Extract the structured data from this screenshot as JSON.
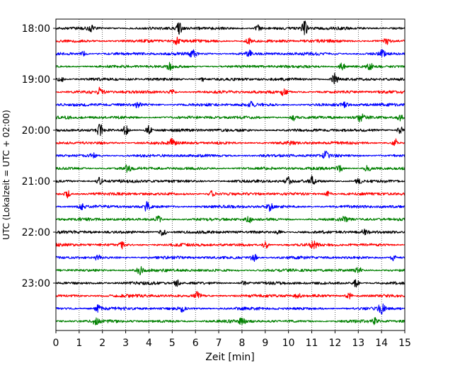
{
  "chart_data": {
    "type": "line",
    "title": "",
    "xlabel": "Zeit  [min]",
    "ylabel": "UTC (Lokalzeit = UTC + 02:00)",
    "xlim": [
      0,
      15
    ],
    "x_ticks": [
      "0",
      "1",
      "2",
      "3",
      "4",
      "5",
      "6",
      "7",
      "8",
      "9",
      "10",
      "11",
      "12",
      "13",
      "14",
      "15"
    ],
    "y_ticks": [
      {
        "label": "18:00",
        "row": 0
      },
      {
        "label": "19:00",
        "row": 4
      },
      {
        "label": "20:00",
        "row": 8
      },
      {
        "label": "21:00",
        "row": 12
      },
      {
        "label": "22:00",
        "row": 16
      },
      {
        "label": "23:00",
        "row": 20
      }
    ],
    "grid": "vertical dotted",
    "trace_interval_min": 15,
    "trace_colors": [
      "#000000",
      "#ff0000",
      "#0000ff",
      "#008000"
    ],
    "series": [
      {
        "start": "18:00",
        "events": [
          {
            "t": 5.3,
            "a": 7
          },
          {
            "t": 8.7,
            "a": 5
          },
          {
            "t": 10.7,
            "a": 9
          },
          {
            "t": 1.5,
            "a": 4
          }
        ]
      },
      {
        "start": "18:15",
        "events": [
          {
            "t": 5.2,
            "a": 5
          },
          {
            "t": 8.3,
            "a": 4
          },
          {
            "t": 14.2,
            "a": 4
          }
        ]
      },
      {
        "start": "18:30",
        "events": [
          {
            "t": 5.9,
            "a": 6
          },
          {
            "t": 8.3,
            "a": 4
          },
          {
            "t": 14.0,
            "a": 6
          },
          {
            "t": 1.2,
            "a": 3
          }
        ]
      },
      {
        "start": "18:45",
        "events": [
          {
            "t": 4.9,
            "a": 4
          },
          {
            "t": 12.3,
            "a": 5
          },
          {
            "t": 13.5,
            "a": 4
          }
        ]
      },
      {
        "start": "19:00",
        "events": [
          {
            "t": 12.0,
            "a": 8
          },
          {
            "t": 0.2,
            "a": 4
          },
          {
            "t": 6.3,
            "a": 3
          }
        ]
      },
      {
        "start": "19:15",
        "events": [
          {
            "t": 1.9,
            "a": 6
          },
          {
            "t": 9.8,
            "a": 4
          },
          {
            "t": 5.0,
            "a": 3
          }
        ]
      },
      {
        "start": "19:30",
        "events": [
          {
            "t": 8.4,
            "a": 4
          },
          {
            "t": 12.4,
            "a": 4
          },
          {
            "t": 3.5,
            "a": 3
          }
        ]
      },
      {
        "start": "19:45",
        "events": [
          {
            "t": 10.2,
            "a": 4
          },
          {
            "t": 13.1,
            "a": 6
          },
          {
            "t": 14.8,
            "a": 4
          }
        ]
      },
      {
        "start": "20:00",
        "events": [
          {
            "t": 1.9,
            "a": 8
          },
          {
            "t": 3.0,
            "a": 6
          },
          {
            "t": 4.0,
            "a": 6
          },
          {
            "t": 14.8,
            "a": 5
          }
        ]
      },
      {
        "start": "20:15",
        "events": [
          {
            "t": 5.0,
            "a": 7
          },
          {
            "t": 10.1,
            "a": 4
          },
          {
            "t": 14.6,
            "a": 5
          }
        ]
      },
      {
        "start": "20:30",
        "events": [
          {
            "t": 11.6,
            "a": 5
          },
          {
            "t": 1.6,
            "a": 3
          }
        ]
      },
      {
        "start": "20:45",
        "events": [
          {
            "t": 3.1,
            "a": 5
          },
          {
            "t": 12.2,
            "a": 4
          },
          {
            "t": 13.4,
            "a": 5
          }
        ]
      },
      {
        "start": "21:00",
        "events": [
          {
            "t": 1.9,
            "a": 5
          },
          {
            "t": 10.0,
            "a": 7
          },
          {
            "t": 11.0,
            "a": 6
          },
          {
            "t": 13.0,
            "a": 4
          }
        ]
      },
      {
        "start": "21:15",
        "events": [
          {
            "t": 0.5,
            "a": 5
          },
          {
            "t": 6.7,
            "a": 4
          },
          {
            "t": 11.7,
            "a": 4
          }
        ]
      },
      {
        "start": "21:30",
        "events": [
          {
            "t": 3.9,
            "a": 6
          },
          {
            "t": 9.2,
            "a": 5
          },
          {
            "t": 1.1,
            "a": 3
          }
        ]
      },
      {
        "start": "21:45",
        "events": [
          {
            "t": 4.4,
            "a": 4
          },
          {
            "t": 8.3,
            "a": 4
          },
          {
            "t": 12.4,
            "a": 4
          }
        ]
      },
      {
        "start": "22:00",
        "events": [
          {
            "t": 4.6,
            "a": 5
          },
          {
            "t": 13.3,
            "a": 5
          },
          {
            "t": 9.6,
            "a": 3
          }
        ]
      },
      {
        "start": "22:15",
        "events": [
          {
            "t": 2.8,
            "a": 5
          },
          {
            "t": 9.0,
            "a": 5
          },
          {
            "t": 11.1,
            "a": 5
          }
        ]
      },
      {
        "start": "22:30",
        "events": [
          {
            "t": 8.5,
            "a": 6
          },
          {
            "t": 14.5,
            "a": 4
          },
          {
            "t": 1.8,
            "a": 3
          }
        ]
      },
      {
        "start": "22:45",
        "events": [
          {
            "t": 3.6,
            "a": 5
          },
          {
            "t": 13.0,
            "a": 5
          }
        ]
      },
      {
        "start": "23:00",
        "events": [
          {
            "t": 5.2,
            "a": 4
          },
          {
            "t": 12.9,
            "a": 5
          },
          {
            "t": 8.1,
            "a": 3
          }
        ]
      },
      {
        "start": "23:15",
        "events": [
          {
            "t": 6.1,
            "a": 5
          },
          {
            "t": 12.6,
            "a": 4
          },
          {
            "t": 10.4,
            "a": 3
          }
        ]
      },
      {
        "start": "23:30",
        "events": [
          {
            "t": 1.8,
            "a": 4
          },
          {
            "t": 5.4,
            "a": 4
          },
          {
            "t": 14.0,
            "a": 7
          }
        ]
      },
      {
        "start": "23:45",
        "events": [
          {
            "t": 1.7,
            "a": 4
          },
          {
            "t": 8.0,
            "a": 4
          },
          {
            "t": 13.7,
            "a": 4
          }
        ]
      }
    ]
  }
}
